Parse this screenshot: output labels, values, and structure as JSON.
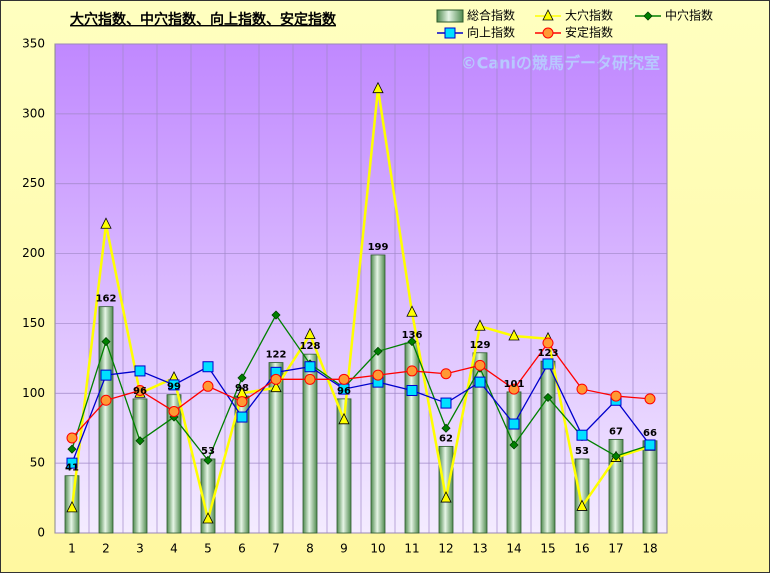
{
  "chart_data": {
    "type": "combo",
    "title": "大穴指数、中穴指数、向上指数、安定指数",
    "annotation": "©Caniの競馬データ研究室",
    "categories": [
      "1",
      "2",
      "3",
      "4",
      "5",
      "6",
      "7",
      "8",
      "9",
      "10",
      "11",
      "12",
      "13",
      "14",
      "15",
      "16",
      "17",
      "18"
    ],
    "ylim": [
      0,
      350
    ],
    "yticks": [
      0,
      50,
      100,
      150,
      200,
      250,
      300,
      350
    ],
    "grid": true,
    "series": [
      {
        "name": "総合指数",
        "type": "bar",
        "color": "#7fb07f",
        "values": [
          41,
          162,
          96,
          99,
          53,
          98,
          122,
          128,
          96,
          199,
          136,
          62,
          129,
          101,
          123,
          53,
          67,
          66
        ]
      },
      {
        "name": "大穴指数",
        "type": "line",
        "marker": "triangle",
        "color": "#ffff00",
        "values": [
          18,
          221,
          100,
          111,
          10,
          100,
          104,
          142,
          81,
          318,
          158,
          25,
          148,
          141,
          139,
          19,
          54,
          62
        ]
      },
      {
        "name": "中穴指数",
        "type": "line",
        "marker": "diamond",
        "color": "#008000",
        "values": [
          60,
          137,
          66,
          83,
          52,
          111,
          156,
          121,
          104,
          130,
          137,
          75,
          118,
          63,
          97,
          69,
          55,
          63
        ]
      },
      {
        "name": "向上指数",
        "type": "line",
        "marker": "square",
        "color": "#0000cc",
        "values": [
          50,
          113,
          116,
          106,
          119,
          83,
          115,
          119,
          103,
          108,
          102,
          93,
          108,
          78,
          121,
          70,
          95,
          63
        ]
      },
      {
        "name": "安定指数",
        "type": "line",
        "marker": "circle",
        "color": "#ff0000",
        "values": [
          68,
          95,
          102,
          87,
          105,
          94,
          110,
          110,
          110,
          113,
          116,
          114,
          120,
          103,
          136,
          103,
          98,
          96
        ]
      }
    ]
  }
}
